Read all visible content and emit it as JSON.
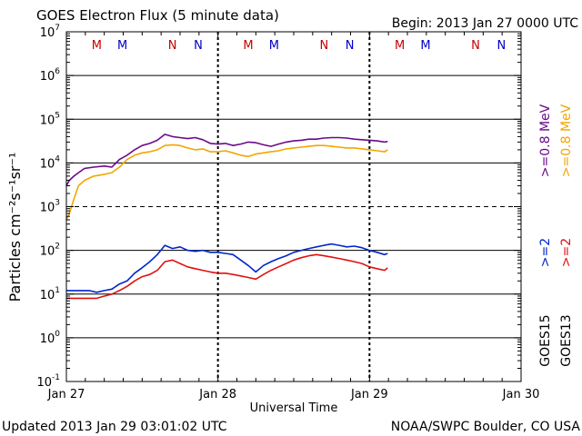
{
  "chart_data": {
    "type": "line",
    "title": "GOES Electron Flux (5 minute data)",
    "begin_label": "Begin: 2013 Jan 27 0000 UTC",
    "xlabel": "Universal Time",
    "ylabel": "Particles cm⁻²s⁻¹sr⁻¹",
    "y_scale": "log",
    "ylim": [
      0.1,
      10000000
    ],
    "y_ticks": [
      {
        "base": "10",
        "exp": "7",
        "value": 10000000
      },
      {
        "base": "10",
        "exp": "6",
        "value": 1000000
      },
      {
        "base": "10",
        "exp": "5",
        "value": 100000
      },
      {
        "base": "10",
        "exp": "4",
        "value": 10000
      },
      {
        "base": "10",
        "exp": "3",
        "value": 1000
      },
      {
        "base": "10",
        "exp": "2",
        "value": 100
      },
      {
        "base": "10",
        "exp": "1",
        "value": 10
      },
      {
        "base": "10",
        "exp": "0",
        "value": 1
      },
      {
        "base": "10",
        "exp": "-1",
        "value": 0.1
      }
    ],
    "xlim_days": [
      0,
      3
    ],
    "x_ticks": [
      {
        "label": "Jan 27",
        "day": 0
      },
      {
        "label": "Jan 28",
        "day": 1
      },
      {
        "label": "Jan 29",
        "day": 2
      },
      {
        "label": "Jan 30",
        "day": 3
      }
    ],
    "day_boundaries": [
      1,
      2
    ],
    "markers": [
      {
        "label": "M",
        "day": 0.2,
        "color": "#c80000"
      },
      {
        "label": "M",
        "day": 0.37,
        "color": "#0000c8"
      },
      {
        "label": "N",
        "day": 0.7,
        "color": "#c80000"
      },
      {
        "label": "N",
        "day": 0.87,
        "color": "#0000c8"
      },
      {
        "label": "M",
        "day": 1.2,
        "color": "#c80000"
      },
      {
        "label": "M",
        "day": 1.37,
        "color": "#0000c8"
      },
      {
        "label": "N",
        "day": 1.7,
        "color": "#c80000"
      },
      {
        "label": "N",
        "day": 1.87,
        "color": "#0000c8"
      },
      {
        "label": "M",
        "day": 2.2,
        "color": "#c80000"
      },
      {
        "label": "M",
        "day": 2.37,
        "color": "#0000c8"
      },
      {
        "label": "N",
        "day": 2.7,
        "color": "#c80000"
      },
      {
        "label": "N",
        "day": 2.87,
        "color": "#0000c8"
      }
    ],
    "series": [
      {
        "name": "GOES15 >=0.8 MeV",
        "color": "#6a0a8a",
        "x_days": [
          0.0,
          0.02,
          0.05,
          0.08,
          0.12,
          0.18,
          0.25,
          0.3,
          0.35,
          0.4,
          0.45,
          0.5,
          0.55,
          0.6,
          0.65,
          0.7,
          0.75,
          0.8,
          0.85,
          0.9,
          0.95,
          1.0,
          1.05,
          1.1,
          1.15,
          1.2,
          1.25,
          1.3,
          1.35,
          1.4,
          1.45,
          1.5,
          1.55,
          1.6,
          1.65,
          1.7,
          1.75,
          1.8,
          1.85,
          1.9,
          1.95,
          2.0,
          2.05,
          2.1,
          2.12
        ],
        "values": [
          3000,
          4000,
          5000,
          6000,
          7500,
          8000,
          8500,
          8000,
          12000,
          15000,
          20000,
          25000,
          28000,
          33000,
          45000,
          40000,
          38000,
          36000,
          38000,
          34000,
          28000,
          27000,
          28000,
          25000,
          27000,
          30000,
          29000,
          26000,
          24000,
          27000,
          30000,
          32000,
          33000,
          35000,
          35000,
          37000,
          38000,
          38000,
          37000,
          35000,
          34000,
          33000,
          32000,
          30000,
          31000
        ]
      },
      {
        "name": "GOES13 >=0.8 MeV",
        "color": "#f2a600",
        "x_days": [
          0.0,
          0.02,
          0.05,
          0.08,
          0.12,
          0.18,
          0.25,
          0.3,
          0.35,
          0.4,
          0.45,
          0.5,
          0.55,
          0.6,
          0.65,
          0.7,
          0.75,
          0.8,
          0.85,
          0.9,
          0.95,
          1.0,
          1.05,
          1.1,
          1.15,
          1.2,
          1.25,
          1.3,
          1.35,
          1.4,
          1.45,
          1.5,
          1.55,
          1.6,
          1.65,
          1.7,
          1.75,
          1.8,
          1.85,
          1.9,
          1.95,
          2.0,
          2.05,
          2.1,
          2.12
        ],
        "values": [
          500,
          700,
          1500,
          3000,
          4000,
          5000,
          5500,
          6000,
          8000,
          12000,
          15000,
          17000,
          18000,
          20000,
          25000,
          26000,
          25000,
          22000,
          20000,
          21000,
          18000,
          18000,
          19000,
          17000,
          15000,
          14000,
          16000,
          17000,
          18000,
          19000,
          21000,
          22000,
          23000,
          24000,
          25000,
          25000,
          24000,
          23000,
          22000,
          22000,
          21000,
          20000,
          19000,
          18000,
          20000
        ]
      },
      {
        "name": "GOES15 >=2 MeV",
        "color": "#0026c8",
        "x_days": [
          0.0,
          0.05,
          0.1,
          0.15,
          0.2,
          0.25,
          0.3,
          0.35,
          0.4,
          0.45,
          0.5,
          0.55,
          0.6,
          0.65,
          0.7,
          0.75,
          0.8,
          0.85,
          0.9,
          0.95,
          1.0,
          1.05,
          1.1,
          1.15,
          1.2,
          1.25,
          1.3,
          1.35,
          1.4,
          1.45,
          1.5,
          1.55,
          1.6,
          1.65,
          1.7,
          1.75,
          1.8,
          1.85,
          1.9,
          1.95,
          2.0,
          2.05,
          2.1,
          2.12
        ],
        "values": [
          12,
          12,
          12,
          12,
          11,
          12,
          13,
          17,
          20,
          30,
          40,
          55,
          80,
          130,
          110,
          120,
          100,
          95,
          100,
          90,
          90,
          85,
          80,
          60,
          45,
          32,
          45,
          55,
          65,
          75,
          90,
          100,
          110,
          120,
          130,
          140,
          130,
          120,
          125,
          115,
          100,
          90,
          80,
          85
        ]
      },
      {
        "name": "GOES13 >=2 MeV",
        "color": "#e01010",
        "x_days": [
          0.0,
          0.05,
          0.1,
          0.15,
          0.2,
          0.25,
          0.3,
          0.35,
          0.4,
          0.45,
          0.5,
          0.55,
          0.6,
          0.65,
          0.7,
          0.75,
          0.8,
          0.85,
          0.9,
          0.95,
          1.0,
          1.05,
          1.1,
          1.15,
          1.2,
          1.25,
          1.3,
          1.35,
          1.4,
          1.45,
          1.5,
          1.55,
          1.6,
          1.65,
          1.7,
          1.75,
          1.8,
          1.85,
          1.9,
          1.95,
          2.0,
          2.05,
          2.1,
          2.12
        ],
        "values": [
          8,
          8,
          8,
          8,
          8,
          9,
          10,
          12,
          15,
          20,
          25,
          28,
          35,
          55,
          60,
          50,
          42,
          38,
          35,
          32,
          30,
          30,
          28,
          26,
          24,
          22,
          28,
          35,
          42,
          50,
          60,
          68,
          75,
          80,
          75,
          70,
          65,
          60,
          55,
          50,
          42,
          38,
          35,
          40
        ]
      }
    ],
    "legend": [
      {
        "text": ">=0.8 MeV",
        "color": "#f2a600"
      },
      {
        "text": ">=0.8 MeV",
        "color": "#6a0a8a"
      },
      {
        "text": ">=2",
        "color": "#e01010"
      },
      {
        "text": ">=2",
        "color": "#0026c8"
      },
      {
        "text": "GOES13",
        "color": "#000000"
      },
      {
        "text": "GOES15",
        "color": "#000000"
      }
    ]
  },
  "footer": {
    "updated": "Updated 2013 Jan 29 03:01:02 UTC",
    "credit": "NOAA/SWPC Boulder, CO USA"
  }
}
